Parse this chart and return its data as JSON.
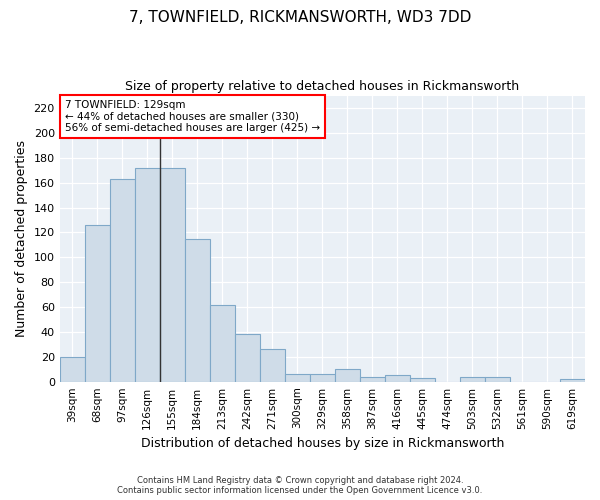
{
  "title": "7, TOWNFIELD, RICKMANSWORTH, WD3 7DD",
  "subtitle": "Size of property relative to detached houses in Rickmansworth",
  "xlabel": "Distribution of detached houses by size in Rickmansworth",
  "ylabel": "Number of detached properties",
  "bar_labels": [
    "39sqm",
    "68sqm",
    "97sqm",
    "126sqm",
    "155sqm",
    "184sqm",
    "213sqm",
    "242sqm",
    "271sqm",
    "300sqm",
    "329sqm",
    "358sqm",
    "387sqm",
    "416sqm",
    "445sqm",
    "474sqm",
    "503sqm",
    "532sqm",
    "561sqm",
    "590sqm",
    "619sqm"
  ],
  "bar_values": [
    20,
    126,
    163,
    172,
    172,
    115,
    62,
    38,
    26,
    6,
    6,
    10,
    4,
    5,
    3,
    0,
    4,
    4,
    0,
    0,
    2
  ],
  "bar_color": "#cfdce8",
  "bar_edge_color": "#7fa8c8",
  "background_color": "#eaf0f6",
  "annotation_text": "7 TOWNFIELD: 129sqm\n← 44% of detached houses are smaller (330)\n56% of semi-detached houses are larger (425) →",
  "annotation_box_color": "white",
  "annotation_box_edge": "red",
  "marker_bin_index": 3,
  "ylim": [
    0,
    230
  ],
  "yticks": [
    0,
    20,
    40,
    60,
    80,
    100,
    120,
    140,
    160,
    180,
    200,
    220
  ],
  "footer1": "Contains HM Land Registry data © Crown copyright and database right 2024.",
  "footer2": "Contains public sector information licensed under the Open Government Licence v3.0.",
  "title_fontsize": 11,
  "subtitle_fontsize": 9,
  "xlabel_fontsize": 9,
  "ylabel_fontsize": 9,
  "tick_fontsize": 7.5,
  "ytick_fontsize": 8
}
